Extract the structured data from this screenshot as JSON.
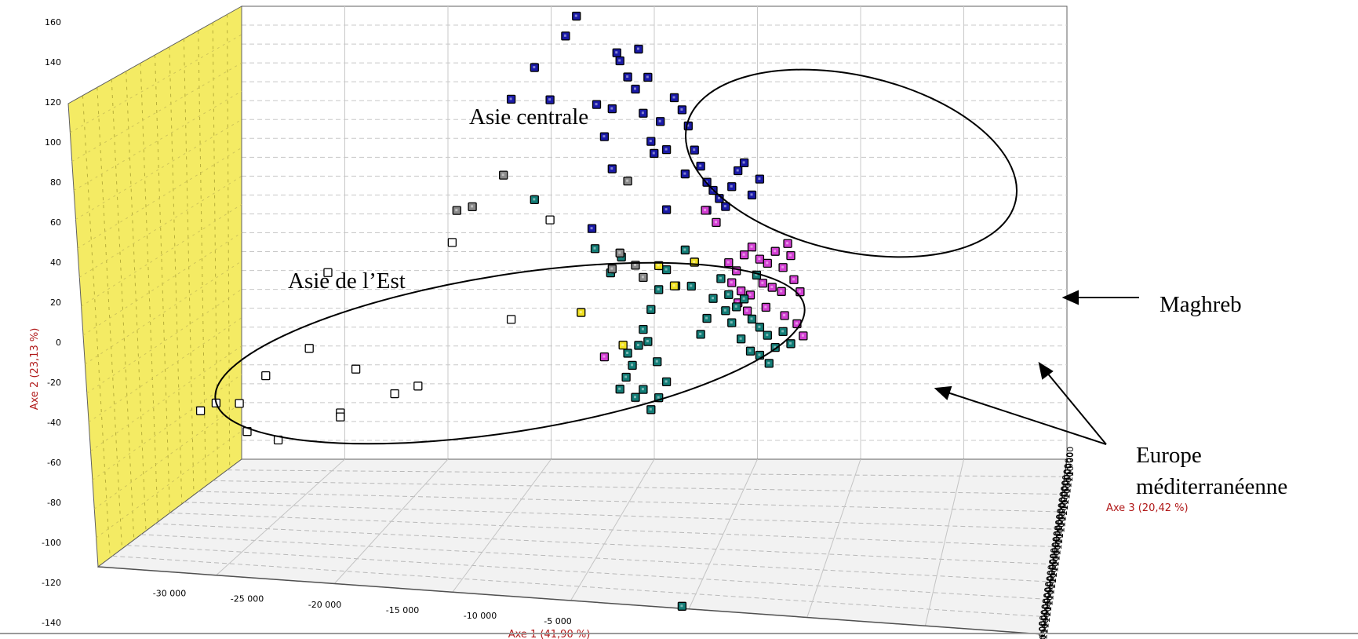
{
  "chart_data": {
    "type": "scatter",
    "subtype": "3d-scatter",
    "axes": {
      "x": {
        "label": "Axe 1 (41,90 %)",
        "ticks": [
          -30000,
          -25000,
          -20000,
          -15000,
          -10000,
          -5000
        ]
      },
      "y": {
        "label": "Axe 2 (23,13 %)",
        "ticks": [
          160,
          140,
          120,
          100,
          80,
          60,
          40,
          20,
          0,
          -20,
          -40,
          -60,
          -80,
          -100,
          -120,
          -140
        ]
      },
      "z": {
        "label": "Axe 3 (20,42 %)",
        "tick_label": "10 000"
      }
    },
    "grid": true,
    "annotations": [
      {
        "id": "asie-centrale",
        "lines": [
          "Asie centrale"
        ]
      },
      {
        "id": "asie-est",
        "lines": [
          "Asie de l’Est"
        ]
      },
      {
        "id": "maghreb",
        "lines": [
          "Maghreb"
        ]
      },
      {
        "id": "europe",
        "lines": [
          "Europe",
          "méditerranéenne"
        ]
      }
    ],
    "series": [
      {
        "group": "asie-de-l-est",
        "color": "#ffffff",
        "points": [
          [
            -28000,
            -34
          ],
          [
            -27000,
            -30
          ],
          [
            -25500,
            -30
          ],
          [
            -23800,
            -16
          ],
          [
            -25000,
            -44
          ],
          [
            -23000,
            -48
          ],
          [
            -21000,
            -2
          ],
          [
            -19800,
            36
          ],
          [
            -19000,
            -34
          ],
          [
            -19000,
            -36
          ],
          [
            -18000,
            -12
          ],
          [
            -15500,
            -24
          ],
          [
            -14000,
            -20
          ],
          [
            -11800,
            52
          ],
          [
            -8000,
            14
          ],
          [
            -5500,
            64
          ]
        ]
      },
      {
        "group": "asie-centrale",
        "color": "#1a1aa8",
        "points": [
          [
            -8000,
            124
          ],
          [
            -6500,
            140
          ],
          [
            -5500,
            124
          ],
          [
            -4500,
            156
          ],
          [
            -3800,
            166
          ],
          [
            -2500,
            122
          ],
          [
            -2000,
            106
          ],
          [
            -1500,
            120
          ],
          [
            -1000,
            144
          ],
          [
            -500,
            136
          ],
          [
            0,
            130
          ],
          [
            500,
            118
          ],
          [
            800,
            136
          ],
          [
            1200,
            98
          ],
          [
            1600,
            114
          ],
          [
            2000,
            100
          ],
          [
            2500,
            126
          ],
          [
            3000,
            120
          ],
          [
            3400,
            112
          ],
          [
            3800,
            100
          ],
          [
            4200,
            92
          ],
          [
            4600,
            84
          ],
          [
            5000,
            80
          ],
          [
            5400,
            76
          ],
          [
            5800,
            72
          ],
          [
            6200,
            82
          ],
          [
            6600,
            90
          ],
          [
            7000,
            94
          ],
          [
            7500,
            78
          ],
          [
            8000,
            86
          ],
          [
            -2800,
            60
          ],
          [
            -1500,
            90
          ],
          [
            2000,
            70
          ],
          [
            4600,
            70
          ],
          [
            200,
            150
          ],
          [
            -1200,
            148
          ],
          [
            1000,
            104
          ],
          [
            3200,
            88
          ]
        ]
      },
      {
        "group": "maghreb",
        "color": "#d23fd2",
        "points": [
          [
            6000,
            44
          ],
          [
            6500,
            40
          ],
          [
            7000,
            48
          ],
          [
            7500,
            52
          ],
          [
            8000,
            46
          ],
          [
            8500,
            44
          ],
          [
            9000,
            50
          ],
          [
            9500,
            42
          ],
          [
            10000,
            48
          ],
          [
            6200,
            34
          ],
          [
            6800,
            30
          ],
          [
            7400,
            28
          ],
          [
            8200,
            34
          ],
          [
            8800,
            32
          ],
          [
            9400,
            30
          ],
          [
            10200,
            36
          ],
          [
            10600,
            30
          ],
          [
            6600,
            24
          ],
          [
            7200,
            20
          ],
          [
            8400,
            22
          ],
          [
            9600,
            18
          ],
          [
            10400,
            14
          ],
          [
            10800,
            8
          ],
          [
            4500,
            70
          ],
          [
            5200,
            64
          ],
          [
            9800,
            54
          ],
          [
            -2000,
            -4
          ]
        ]
      },
      {
        "group": "europe-mediterraneenne",
        "color": "#137d77",
        "points": [
          [
            5500,
            36
          ],
          [
            6000,
            28
          ],
          [
            6500,
            22
          ],
          [
            7000,
            26
          ],
          [
            7500,
            16
          ],
          [
            8000,
            12
          ],
          [
            8500,
            8
          ],
          [
            9000,
            2
          ],
          [
            9500,
            10
          ],
          [
            10000,
            4
          ],
          [
            6200,
            14
          ],
          [
            6800,
            6
          ],
          [
            7400,
            0
          ],
          [
            8000,
            -2
          ],
          [
            8600,
            -6
          ],
          [
            5800,
            20
          ],
          [
            5000,
            26
          ],
          [
            4600,
            16
          ],
          [
            4200,
            8
          ],
          [
            3800,
            44
          ],
          [
            3200,
            50
          ],
          [
            2600,
            32
          ],
          [
            2000,
            40
          ],
          [
            1500,
            30
          ],
          [
            1000,
            20
          ],
          [
            500,
            10
          ],
          [
            200,
            2
          ],
          [
            -200,
            -8
          ],
          [
            -600,
            -14
          ],
          [
            -1000,
            -20
          ],
          [
            0,
            -24
          ],
          [
            500,
            -20
          ],
          [
            1000,
            -30
          ],
          [
            1500,
            -24
          ],
          [
            2000,
            -16
          ],
          [
            -500,
            -2
          ],
          [
            800,
            4
          ],
          [
            1400,
            -6
          ],
          [
            -1600,
            38
          ],
          [
            -900,
            46
          ],
          [
            -2600,
            50
          ],
          [
            3000,
            -128
          ],
          [
            -6500,
            74
          ],
          [
            3600,
            32
          ],
          [
            7800,
            38
          ]
        ]
      },
      {
        "group": "gris",
        "color": "#8a8a8a",
        "points": [
          [
            -8500,
            86
          ],
          [
            -10500,
            70
          ],
          [
            -11500,
            68
          ],
          [
            -1500,
            40
          ],
          [
            -1000,
            48
          ],
          [
            0,
            42
          ],
          [
            500,
            36
          ],
          [
            -500,
            84
          ]
        ]
      },
      {
        "group": "jaune",
        "color": "#f0e020",
        "points": [
          [
            -3500,
            18
          ],
          [
            1500,
            42
          ],
          [
            2500,
            32
          ],
          [
            -800,
            2
          ],
          [
            3800,
            44
          ]
        ]
      }
    ]
  }
}
